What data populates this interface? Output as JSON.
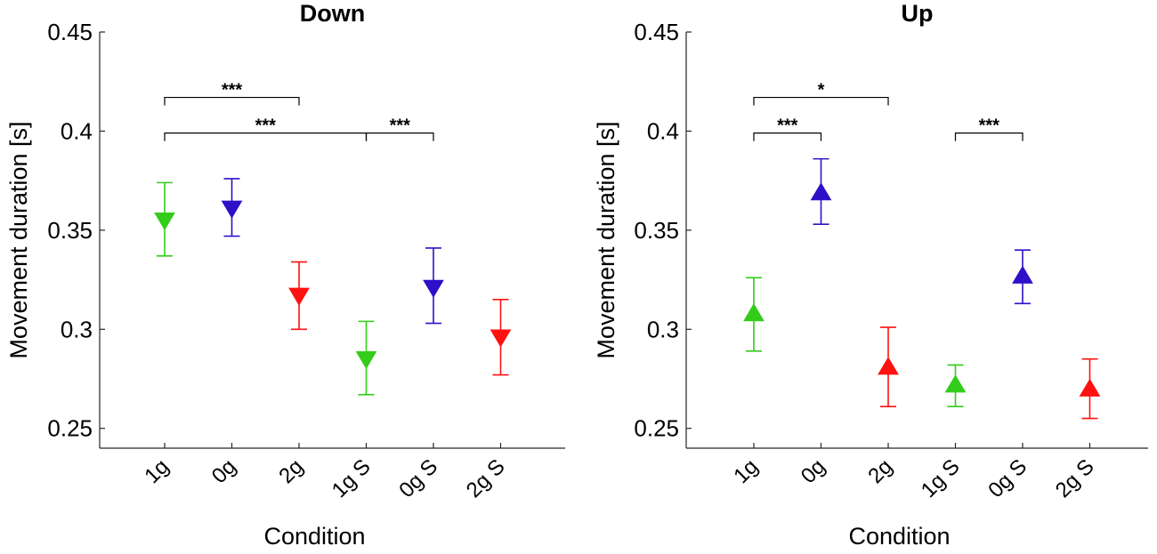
{
  "chart_data": [
    {
      "type": "scatter",
      "title": "Down",
      "xlabel": "Condition",
      "ylabel": "Movement duration [s]",
      "ylim": [
        0.24,
        0.45
      ],
      "yticks": [
        "0.25",
        "0.3",
        "0.35",
        "0.4",
        "0.45"
      ],
      "yticks_values": [
        0.25,
        0.3,
        0.35,
        0.4,
        0.45
      ],
      "categories": [
        "1g",
        "0g",
        "2g",
        "1g S",
        "0g S",
        "2g S"
      ],
      "marker": "triangle-down",
      "colors": [
        "#33cc1a",
        "#2e10c8",
        "#ff1111",
        "#33cc1a",
        "#2e10c8",
        "#ff1111"
      ],
      "values": [
        0.355,
        0.361,
        0.317,
        0.285,
        0.321,
        0.296
      ],
      "error_upper": [
        0.374,
        0.376,
        0.334,
        0.304,
        0.341,
        0.315
      ],
      "error_lower": [
        0.337,
        0.347,
        0.3,
        0.267,
        0.303,
        0.277
      ],
      "significance": [
        {
          "from": 0,
          "to": 2,
          "y": 0.417,
          "label": "***"
        },
        {
          "from": 0,
          "to": 3,
          "y": 0.399,
          "label": "***"
        },
        {
          "from": 3,
          "to": 4,
          "y": 0.399,
          "label": "***"
        }
      ]
    },
    {
      "type": "scatter",
      "title": "Up",
      "xlabel": "Condition",
      "ylabel": "Movement duration [s]",
      "ylim": [
        0.24,
        0.45
      ],
      "yticks": [
        "0.25",
        "0.3",
        "0.35",
        "0.4",
        "0.45"
      ],
      "yticks_values": [
        0.25,
        0.3,
        0.35,
        0.4,
        0.45
      ],
      "categories": [
        "1g",
        "0g",
        "2g",
        "1g S",
        "0g S",
        "2g S"
      ],
      "marker": "triangle-up",
      "colors": [
        "#33cc1a",
        "#2e10c8",
        "#ff1111",
        "#33cc1a",
        "#2e10c8",
        "#ff1111"
      ],
      "values": [
        0.308,
        0.369,
        0.281,
        0.272,
        0.327,
        0.27
      ],
      "error_upper": [
        0.326,
        0.386,
        0.301,
        0.282,
        0.34,
        0.285
      ],
      "error_lower": [
        0.289,
        0.353,
        0.261,
        0.261,
        0.313,
        0.255
      ],
      "significance": [
        {
          "from": 0,
          "to": 2,
          "y": 0.417,
          "label": "*"
        },
        {
          "from": 0,
          "to": 1,
          "y": 0.399,
          "label": "***"
        },
        {
          "from": 3,
          "to": 4,
          "y": 0.399,
          "label": "***"
        }
      ]
    }
  ]
}
